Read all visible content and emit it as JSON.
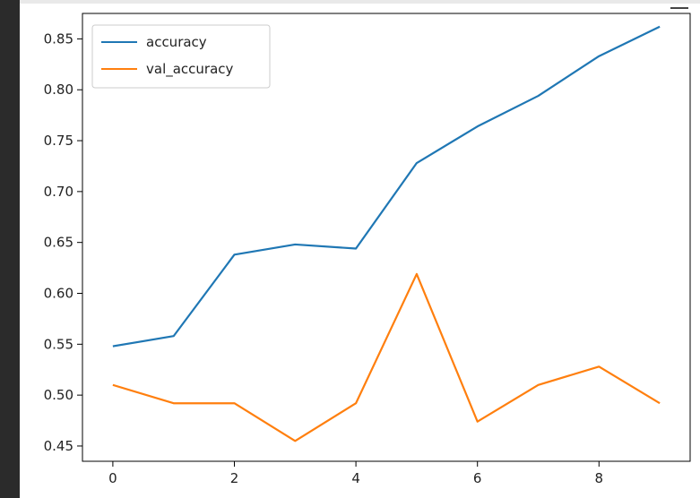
{
  "chart_data": {
    "type": "line",
    "title": "",
    "xlabel": "",
    "ylabel": "",
    "x": [
      0,
      1,
      2,
      3,
      4,
      5,
      6,
      7,
      8,
      9
    ],
    "xlim": [
      -0.5,
      9.5
    ],
    "ylim": [
      0.435,
      0.875
    ],
    "xticks": [
      0,
      2,
      4,
      6,
      8
    ],
    "xtick_labels": [
      "0",
      "2",
      "4",
      "6",
      "8"
    ],
    "yticks": [
      0.45,
      0.5,
      0.55,
      0.6,
      0.65,
      0.7,
      0.75,
      0.8,
      0.85
    ],
    "ytick_labels": [
      "0.45",
      "0.50",
      "0.55",
      "0.60",
      "0.65",
      "0.70",
      "0.75",
      "0.80",
      "0.85"
    ],
    "grid": false,
    "legend_position": "top-left",
    "series": [
      {
        "name": "accuracy",
        "color": "#1f77b4",
        "values": [
          0.548,
          0.558,
          0.638,
          0.648,
          0.644,
          0.728,
          0.764,
          0.794,
          0.833,
          0.862
        ]
      },
      {
        "name": "val_accuracy",
        "color": "#ff7f0e",
        "values": [
          0.51,
          0.492,
          0.492,
          0.455,
          0.492,
          0.619,
          0.474,
          0.51,
          0.528,
          0.492
        ]
      }
    ]
  }
}
